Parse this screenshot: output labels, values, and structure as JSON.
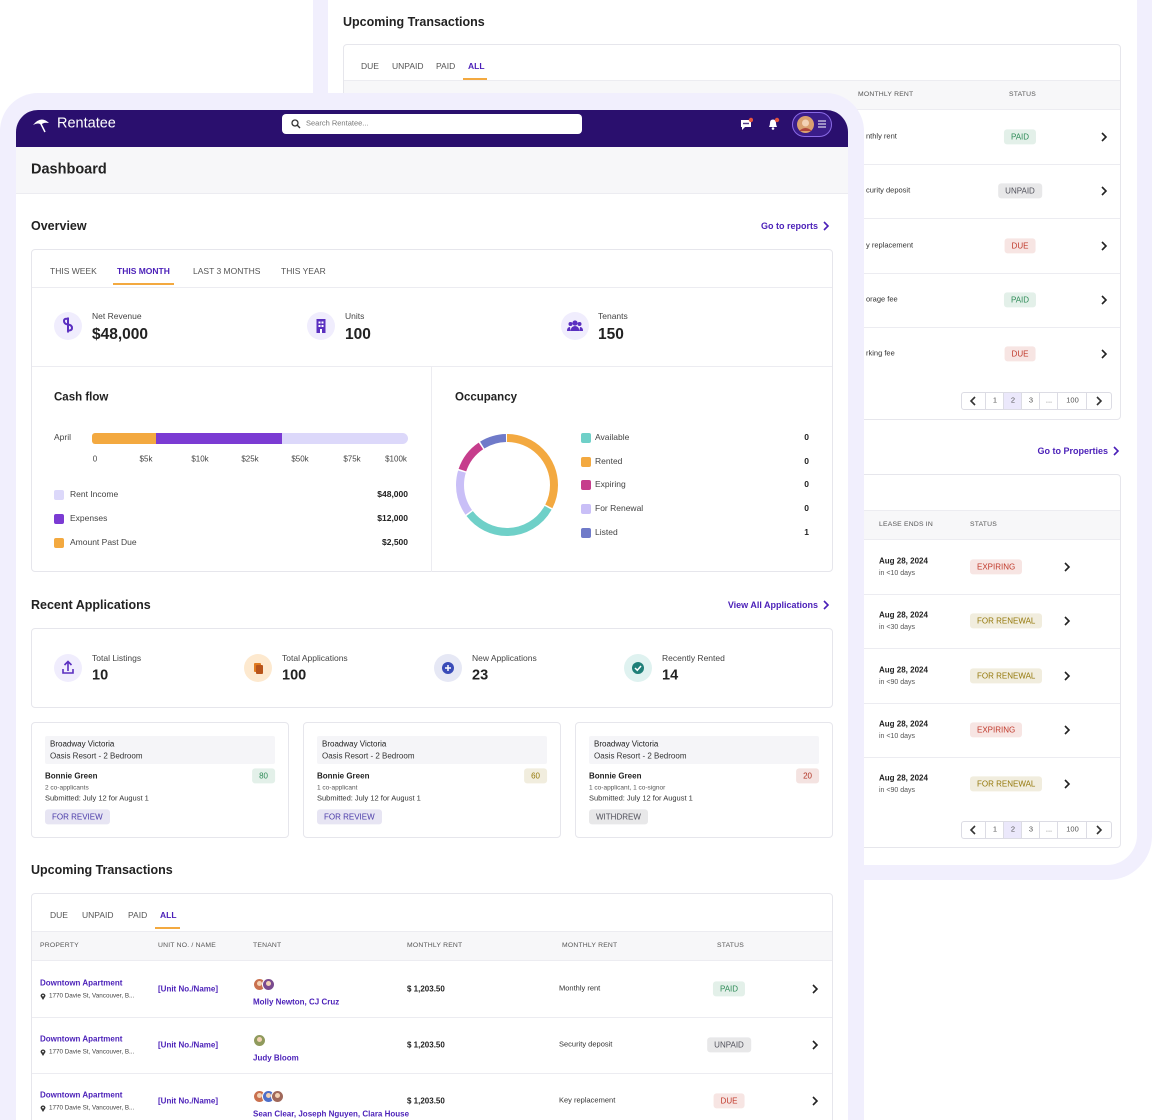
{
  "back": {
    "transactions": {
      "title": "Upcoming Transactions",
      "tabs": [
        "DUE",
        "UNPAID",
        "PAID",
        "ALL"
      ],
      "columns": [
        "MONTHLY RENT",
        "STATUS"
      ],
      "rows": [
        {
          "type": "nthly rent",
          "status": "PAID",
          "status_color": "#2e8b57"
        },
        {
          "type": "curity deposit",
          "status": "UNPAID",
          "status_color": "#50505a"
        },
        {
          "type": "y replacement",
          "status": "DUE",
          "status_color": "#c0392b"
        },
        {
          "type": "orage fee",
          "status": "PAID",
          "status_color": "#2e8b57"
        },
        {
          "type": "rking fee",
          "status": "DUE",
          "status_color": "#c0392b"
        }
      ],
      "pages": [
        1,
        2,
        3,
        "...",
        100
      ]
    },
    "properties": {
      "link": "Go to Properties",
      "columns": [
        "LEASE ENDS IN",
        "STATUS"
      ],
      "rows": [
        {
          "date": "Aug 28, 2024",
          "due": "in <10 days",
          "status": "EXPIRING",
          "status_color": "#c0392b"
        },
        {
          "date": "Aug 28, 2024",
          "due": "in <30 days",
          "status": "FOR RENEWAL",
          "status_color": "#94780a"
        },
        {
          "date": "Aug 28, 2024",
          "due": "in <90 days",
          "status": "FOR RENEWAL",
          "status_color": "#94780a"
        },
        {
          "date": "Aug 28, 2024",
          "due": "in <10 days",
          "status": "EXPIRING",
          "status_color": "#c0392b"
        },
        {
          "date": "Aug 28, 2024",
          "due": "in <90 days",
          "status": "FOR RENEWAL",
          "status_color": "#94780a"
        }
      ],
      "pages": [
        1,
        2,
        3,
        "...",
        100
      ]
    }
  },
  "nav": {
    "brand": "Rentatee",
    "search_placeholder": "Search Rentatee..."
  },
  "header": {
    "title": "Dashboard"
  },
  "overview": {
    "title": "Overview",
    "link": "Go to reports",
    "tabs": [
      "THIS WEEK",
      "THIS MONTH",
      "LAST 3 MONTHS",
      "THIS YEAR"
    ],
    "stats": [
      {
        "label": "Net Revenue",
        "value": "$48,000"
      },
      {
        "label": "Units",
        "value": 100
      },
      {
        "label": "Tenants",
        "value": 150
      }
    ],
    "cash_flow": {
      "title": "Cash flow",
      "category": "April",
      "ticks": [
        0,
        "$5k",
        "$10k",
        "$25k",
        "$50k",
        "$75k",
        "$100k"
      ],
      "legend": [
        {
          "name": "Rent Income",
          "value": "$48,000",
          "color": "#dcd8fa"
        },
        {
          "name": "Expenses",
          "value": "$12,000",
          "color": "#7b3bd3"
        },
        {
          "name": "Amount Past Due",
          "value": "$2,500",
          "color": "#f3a940"
        }
      ]
    },
    "occupancy": {
      "title": "Occupancy",
      "legend": [
        {
          "name": "Available",
          "value": 0,
          "color": "#6fd0c8"
        },
        {
          "name": "Rented",
          "value": 0,
          "color": "#f3a940"
        },
        {
          "name": "Expiring",
          "value": 0,
          "color": "#c63d8c"
        },
        {
          "name": "For Renewal",
          "value": 0,
          "color": "#c9bff7"
        },
        {
          "name": "Listed",
          "value": 1,
          "color": "#6f7ac9"
        }
      ]
    }
  },
  "recent_applications": {
    "title": "Recent Applications",
    "link": "View All Applications",
    "stats": [
      {
        "label": "Total Listings",
        "value": 10
      },
      {
        "label": "Total Applications",
        "value": 100
      },
      {
        "label": "New Applications",
        "value": 23
      },
      {
        "label": "Recently Rented",
        "value": 14
      }
    ],
    "applications": [
      {
        "property": "Broadway Victoria",
        "unit": "Oasis Resort - 2 Bedroom",
        "name": "Bonnie Green",
        "score": 80,
        "score_color": "#2e8b57",
        "co": "2 co-applicants",
        "submitted": "Submitted: July 12 for August 1",
        "status": "FOR REVIEW",
        "status_color": "#4a3aa8"
      },
      {
        "property": "Broadway Victoria",
        "unit": "Oasis Resort - 2 Bedroom",
        "name": "Bonnie Green",
        "score": 60,
        "score_color": "#94780a",
        "co": "1 co-applicant",
        "submitted": "Submitted: July 12 for August 1",
        "status": "FOR REVIEW",
        "status_color": "#4a3aa8"
      },
      {
        "property": "Broadway Victoria",
        "unit": "Oasis Resort - 2 Bedroom",
        "name": "Bonnie Green",
        "score": 20,
        "score_color": "#b03020",
        "co": "1 co-applicant, 1 co-signor",
        "submitted": "Submitted: July 12 for August 1",
        "status": "WITHDREW",
        "status_color": "#50505a"
      }
    ]
  },
  "transactions": {
    "title": "Upcoming Transactions",
    "tabs": [
      "DUE",
      "UNPAID",
      "PAID",
      "ALL"
    ],
    "columns": [
      "PROPERTY",
      "UNIT NO. / NAME",
      "TENANT",
      "MONTHLY RENT",
      "MONTHLY RENT",
      "STATUS"
    ],
    "rows": [
      {
        "property": "Downtown Apartment",
        "address": "1770 Davie St, Vancouver, B...",
        "unit": "[Unit No./Name]",
        "tenant": "Molly Newton, CJ Cruz",
        "rent": "$ 1,203.50",
        "type": "Monthly rent",
        "status": "PAID",
        "status_color": "#2e8b57"
      },
      {
        "property": "Downtown Apartment",
        "address": "1770 Davie St, Vancouver, B...",
        "unit": "[Unit No./Name]",
        "tenant": "Judy Bloom",
        "rent": "$ 1,203.50",
        "type": "Security deposit",
        "status": "UNPAID",
        "status_color": "#50505a"
      },
      {
        "property": "Downtown Apartment",
        "address": "1770 Davie St, Vancouver, B...",
        "unit": "[Unit No./Name]",
        "tenant": "Sean Clear, Joseph Nguyen, Clara House",
        "rent": "$ 1,203.50",
        "type": "Key replacement",
        "status": "DUE",
        "status_color": "#c0392b"
      }
    ]
  }
}
